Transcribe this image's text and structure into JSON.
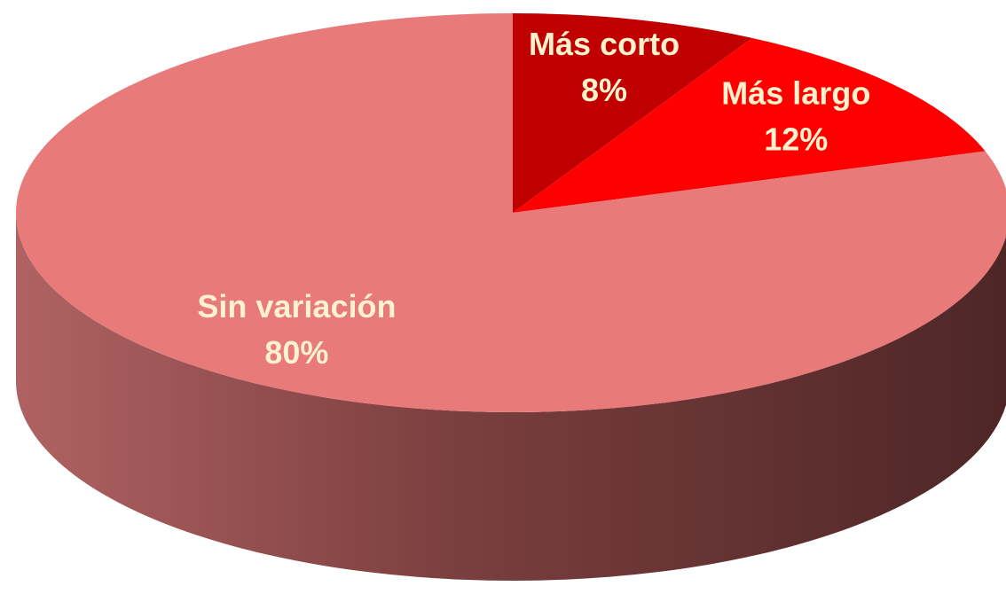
{
  "chart_data": {
    "type": "pie",
    "categories": [
      "Más corto",
      "Más largo",
      "Sin variación"
    ],
    "values": [
      8,
      12,
      80
    ],
    "value_labels": [
      "8%",
      "12%",
      "80%"
    ],
    "colors": [
      "#c00000",
      "#ff0000",
      "#e87a7a"
    ]
  }
}
